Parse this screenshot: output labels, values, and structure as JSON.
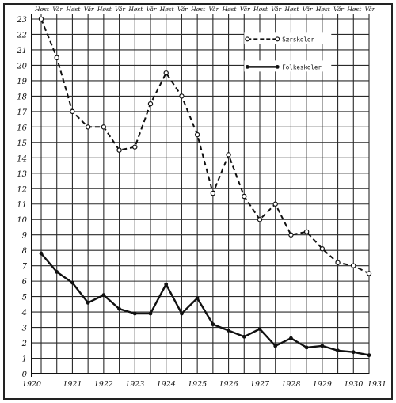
{
  "chart_data": {
    "type": "line",
    "title": "",
    "xlabel": "",
    "ylabel": "",
    "ylim": [
      0,
      23
    ],
    "yticks": [
      0,
      1,
      2,
      3,
      4,
      5,
      6,
      7,
      8,
      9,
      10,
      11,
      12,
      13,
      14,
      15,
      16,
      17,
      18,
      19,
      20,
      21,
      22,
      23
    ],
    "grid": true,
    "legend_position": "top-right",
    "top_labels": [
      "Høst",
      "Vår",
      "Høst",
      "Vår",
      "Høst",
      "Vår",
      "Høst",
      "Vår",
      "Høst",
      "Vår",
      "Høst",
      "Vår",
      "Høst",
      "Vår",
      "Høst",
      "Vår",
      "Høst",
      "Vår",
      "Høst",
      "Vår",
      "Høst",
      "Vår"
    ],
    "year_labels": [
      "1920",
      "1921",
      "1922",
      "1923",
      "1924",
      "1925",
      "1926",
      "1927",
      "1928",
      "1929",
      "1930",
      "1931"
    ],
    "series": [
      {
        "name": "Særskoler",
        "style": "dashed",
        "marker": "open-circle",
        "values": [
          23,
          20.5,
          17,
          16,
          16,
          14.5,
          14.7,
          17.5,
          19.5,
          18,
          15.5,
          11.7,
          14.2,
          11.5,
          10,
          11,
          9,
          9.2,
          8.1,
          7.2,
          7,
          6.5
        ]
      },
      {
        "name": "Folkeskoler",
        "style": "solid",
        "marker": "filled-circle",
        "values": [
          7.8,
          6.6,
          5.9,
          4.6,
          5.1,
          4.2,
          3.9,
          3.9,
          5.8,
          3.9,
          4.9,
          3.2,
          2.8,
          2.4,
          2.9,
          1.8,
          2.3,
          1.7,
          1.8,
          1.5,
          1.4,
          1.2
        ]
      }
    ]
  },
  "colors": {
    "ink": "#111111",
    "grid": "#2a2a2a",
    "paper": "#ffffff"
  }
}
